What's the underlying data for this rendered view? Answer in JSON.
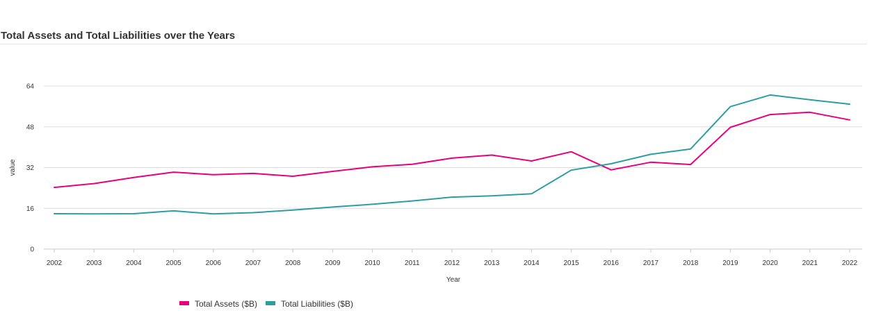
{
  "chart_data": {
    "type": "line",
    "title": "Total Assets and Total Liabilities over the Years",
    "xlabel": "Year",
    "ylabel": "value",
    "categories": [
      "2002",
      "2003",
      "2004",
      "2005",
      "2006",
      "2007",
      "2008",
      "2009",
      "2010",
      "2011",
      "2012",
      "2013",
      "2014",
      "2015",
      "2016",
      "2017",
      "2018",
      "2019",
      "2020",
      "2021",
      "2022"
    ],
    "yticks": [
      0,
      16,
      32,
      48,
      64
    ],
    "ylim": [
      0,
      64
    ],
    "grid": "horizontal",
    "legend_position": "bottom",
    "series": [
      {
        "name": "Total Assets ($B)",
        "color": "#e6007e",
        "values": [
          24.2,
          25.7,
          28.1,
          30.2,
          29.2,
          29.7,
          28.6,
          30.5,
          32.3,
          33.3,
          35.7,
          36.9,
          34.6,
          38.2,
          31.1,
          34.1,
          33.2,
          47.8,
          52.8,
          53.7,
          50.7
        ]
      },
      {
        "name": "Total Liabilities ($B)",
        "color": "#2e9d9f",
        "values": [
          13.9,
          13.8,
          13.9,
          15.0,
          13.8,
          14.3,
          15.3,
          16.5,
          17.6,
          18.9,
          20.4,
          20.9,
          21.7,
          31.0,
          33.5,
          37.2,
          39.3,
          55.9,
          60.5,
          58.6,
          56.9
        ]
      }
    ]
  }
}
